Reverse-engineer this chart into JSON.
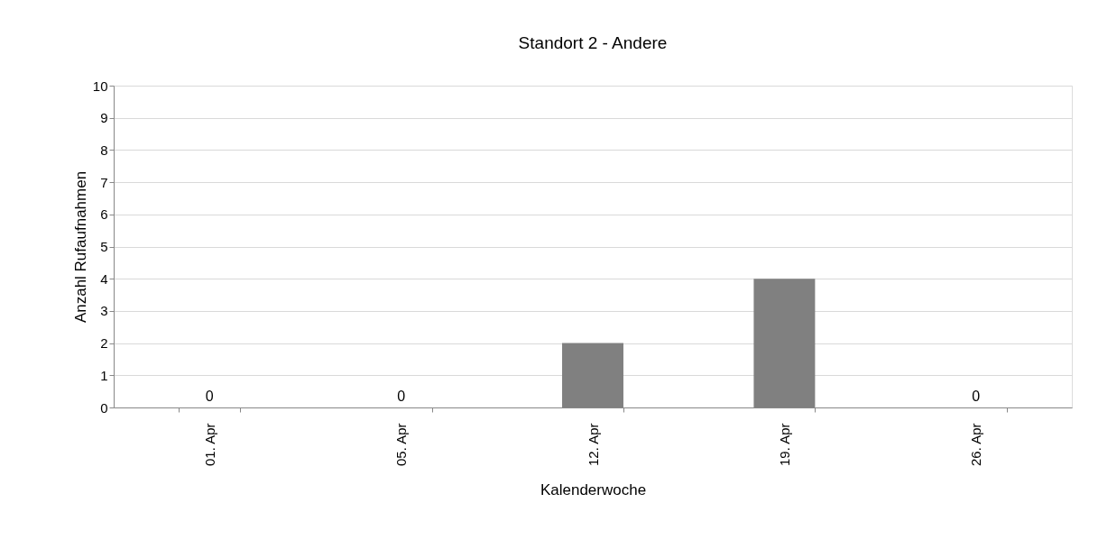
{
  "chart_data": {
    "type": "bar",
    "title": "Standort 2 - Andere",
    "xlabel": "Kalenderwoche",
    "ylabel": "Anzahl Rufaufnahmen",
    "categories": [
      "01. Apr",
      "05. Apr",
      "12. Apr",
      "19. Apr",
      "26. Apr"
    ],
    "values": [
      0,
      0,
      2,
      4,
      0
    ],
    "value_labels": [
      "0",
      "0",
      null,
      null,
      "0"
    ],
    "color": "#808080",
    "ylim": [
      0,
      10
    ],
    "yticks": [
      0,
      1,
      2,
      3,
      4,
      5,
      6,
      7,
      8,
      9,
      10
    ],
    "grid": "y"
  }
}
